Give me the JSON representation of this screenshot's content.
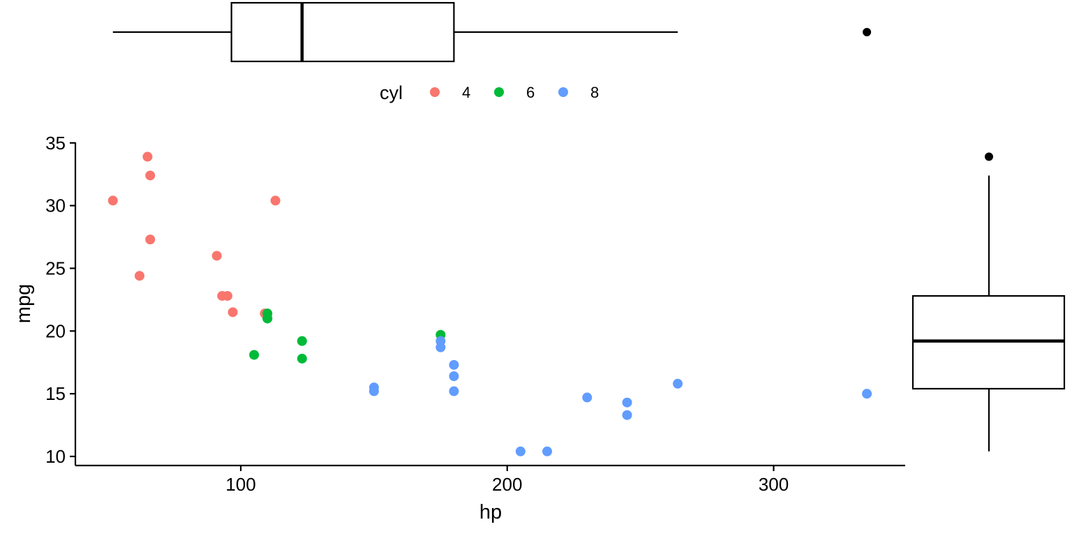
{
  "chart_data": {
    "type": "scatter",
    "xlabel": "hp",
    "ylabel": "mpg",
    "xlim": [
      40,
      351
    ],
    "ylim": [
      9.4,
      35
    ],
    "x_ticks": [
      100,
      200,
      300
    ],
    "y_ticks": [
      10,
      15,
      20,
      25,
      30,
      35
    ],
    "x_tick_labels": [
      "100",
      "200",
      "300"
    ],
    "y_tick_labels": [
      "10",
      "15",
      "20",
      "25",
      "30",
      "35"
    ],
    "grid": false,
    "legend": {
      "title": "cyl",
      "position": "top",
      "entries": [
        {
          "label": "4",
          "color": "#F8766D"
        },
        {
          "label": "6",
          "color": "#00BA38"
        },
        {
          "label": "8",
          "color": "#619CFF"
        }
      ]
    },
    "series": [
      {
        "name": "4",
        "color": "#F8766D",
        "points": [
          [
            52,
            30.4
          ],
          [
            62,
            24.4
          ],
          [
            65,
            33.9
          ],
          [
            66,
            32.4
          ],
          [
            66,
            27.3
          ],
          [
            91,
            26.0
          ],
          [
            93,
            22.8
          ],
          [
            95,
            22.8
          ],
          [
            97,
            21.5
          ],
          [
            109,
            21.4
          ],
          [
            113,
            30.4
          ]
        ]
      },
      {
        "name": "6",
        "color": "#00BA38",
        "points": [
          [
            105,
            18.1
          ],
          [
            110,
            21.0
          ],
          [
            110,
            21.0
          ],
          [
            110,
            21.4
          ],
          [
            123,
            19.2
          ],
          [
            123,
            17.8
          ],
          [
            175,
            19.7
          ]
        ]
      },
      {
        "name": "8",
        "color": "#619CFF",
        "points": [
          [
            150,
            15.5
          ],
          [
            150,
            15.2
          ],
          [
            175,
            18.7
          ],
          [
            175,
            19.2
          ],
          [
            180,
            16.4
          ],
          [
            180,
            17.3
          ],
          [
            180,
            15.2
          ],
          [
            205,
            10.4
          ],
          [
            215,
            10.4
          ],
          [
            230,
            14.7
          ],
          [
            245,
            14.3
          ],
          [
            245,
            13.3
          ],
          [
            264,
            15.8
          ],
          [
            335,
            15.0
          ]
        ]
      }
    ],
    "marginal_boxplots": {
      "hp": {
        "min": 52,
        "q1": 96.5,
        "median": 123,
        "q3": 180,
        "max": 264,
        "outliers": [
          335
        ]
      },
      "mpg": {
        "min": 10.4,
        "q1": 15.4,
        "median": 19.2,
        "q3": 22.8,
        "max": 32.4,
        "outliers": [
          33.9
        ]
      }
    }
  }
}
